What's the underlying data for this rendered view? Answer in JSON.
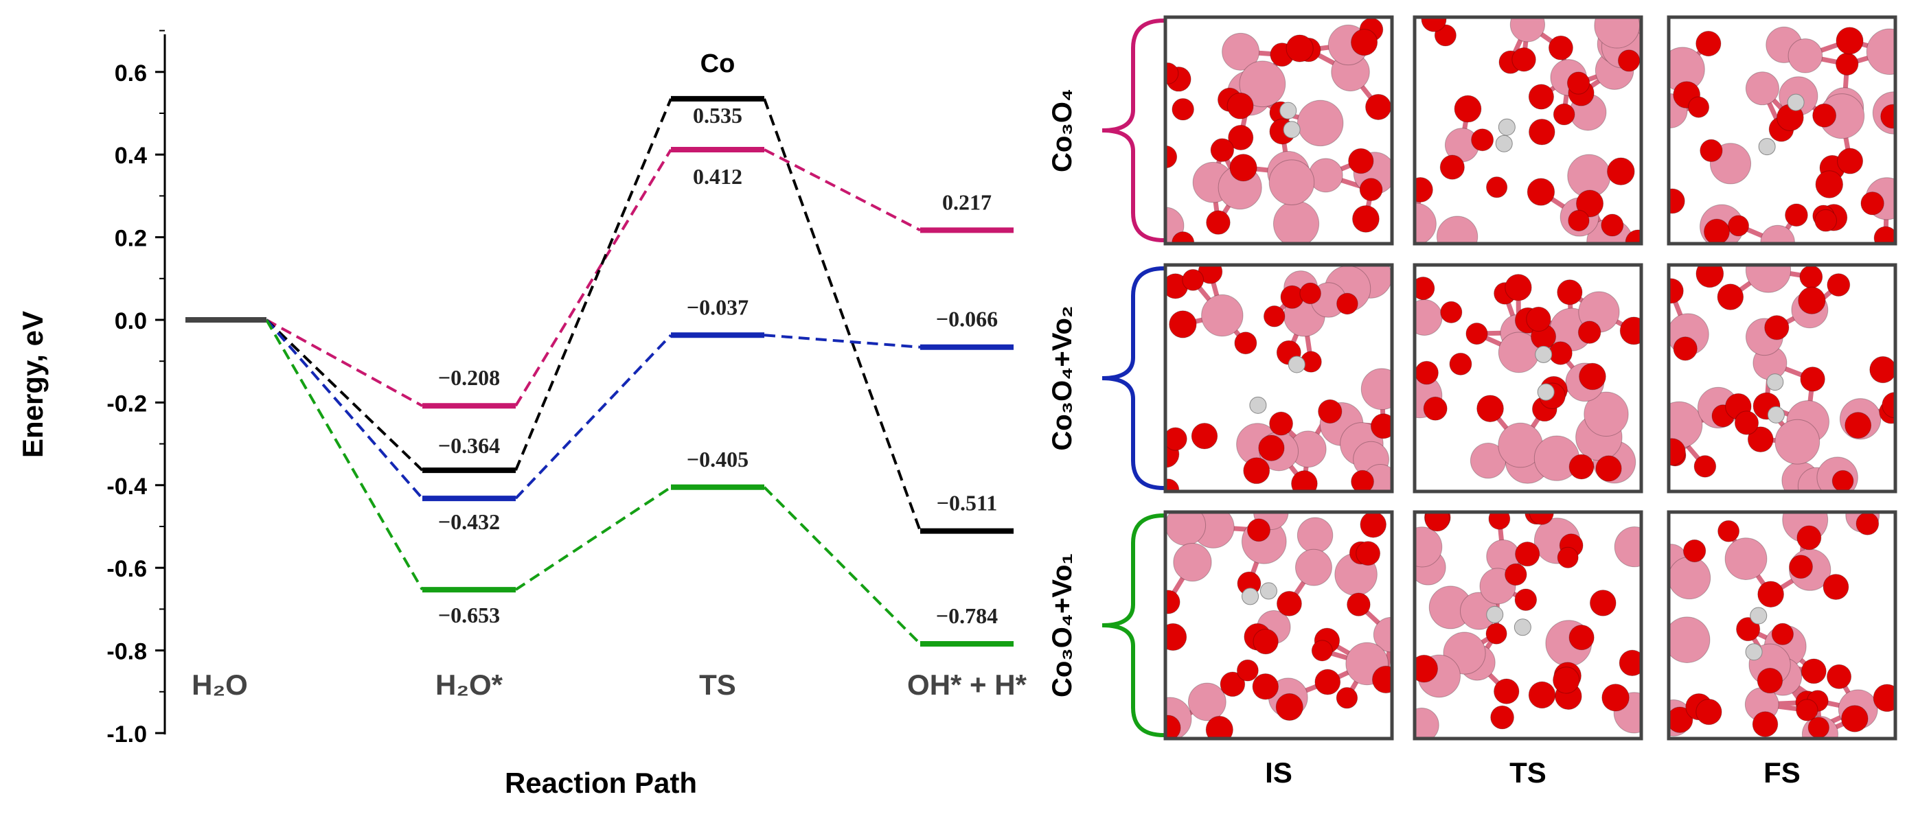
{
  "chart_data": {
    "type": "line",
    "title": "Co",
    "xlabel": "Reaction Path",
    "ylabel": "Energy, eV",
    "ylim": [
      -1.0,
      0.7
    ],
    "yticks": [
      0.6,
      0.4,
      0.2,
      0.0,
      -0.2,
      -0.4,
      -0.6,
      -0.8,
      -1.0
    ],
    "ytick_labels": [
      "0.6",
      "0.4",
      "0.2",
      "0.0",
      "-0.2",
      "-0.4",
      "-0.6",
      "-0.8",
      "-1.0"
    ],
    "categories": [
      "H₂O",
      "H₂O*",
      "TS",
      "OH* + H*"
    ],
    "reference_energy": 0.0,
    "series": [
      {
        "key": "co3o4",
        "color": "#c8186e",
        "values": [
          0.0,
          -0.208,
          0.412,
          0.217
        ],
        "labels": [
          "",
          "−0.208",
          "0.412",
          "0.217"
        ]
      },
      {
        "key": "co",
        "color": "#000000",
        "values": [
          0.0,
          -0.364,
          0.535,
          -0.511
        ],
        "labels": [
          "",
          "−0.364",
          "0.535",
          "−0.511"
        ]
      },
      {
        "key": "vo2",
        "color": "#1428b4",
        "values": [
          0.0,
          -0.432,
          -0.037,
          -0.066
        ],
        "labels": [
          "",
          "−0.432",
          "−0.037",
          "−0.066"
        ]
      },
      {
        "key": "vo1",
        "color": "#14a014",
        "values": [
          0.0,
          -0.653,
          -0.405,
          -0.784
        ],
        "labels": [
          "",
          "−0.653",
          "−0.405",
          "−0.784"
        ]
      }
    ]
  },
  "structures": {
    "rows": [
      {
        "label": "Co₃O₄",
        "color": "#c8186e"
      },
      {
        "label": "Co₃O₄+Vo₂",
        "color": "#1428b4"
      },
      {
        "label": "Co₃O₄+Vo₁",
        "color": "#14a014"
      }
    ],
    "columns": [
      "IS",
      "TS",
      "FS"
    ],
    "atom_colors": {
      "cobalt": "#e691a8",
      "oxygen": "#e00000",
      "hydrogen": "#d0d0d0"
    }
  }
}
